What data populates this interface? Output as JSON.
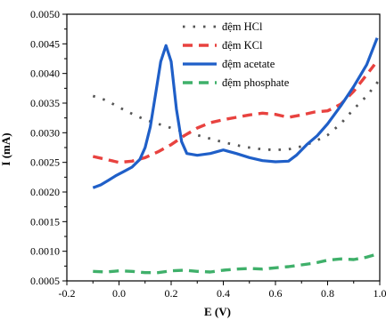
{
  "chart_data": {
    "type": "line",
    "xlabel": "E (V)",
    "ylabel": "I (mA)",
    "xlim": [
      -0.2,
      1.0
    ],
    "ylim": [
      0.0005,
      0.005
    ],
    "x_ticks": [
      "-0.2",
      "0.0",
      "0.2",
      "0.4",
      "0.6",
      "0.8",
      "1.0"
    ],
    "y_ticks": [
      "0.0005",
      "0.0010",
      "0.0015",
      "0.0020",
      "0.0025",
      "0.0030",
      "0.0035",
      "0.0040",
      "0.0045",
      "0.0050"
    ],
    "legend_position": "top-right",
    "grid": false,
    "series": [
      {
        "name": "đệm HCl",
        "color": "#555555",
        "style": "dotted",
        "x": [
          -0.1,
          -0.05,
          0.0,
          0.05,
          0.1,
          0.15,
          0.2,
          0.25,
          0.3,
          0.35,
          0.4,
          0.45,
          0.5,
          0.55,
          0.6,
          0.65,
          0.7,
          0.75,
          0.8,
          0.85,
          0.9,
          0.95,
          1.0
        ],
        "values": [
          0.00362,
          0.00355,
          0.00343,
          0.00332,
          0.00322,
          0.00315,
          0.00308,
          0.00302,
          0.00296,
          0.0029,
          0.00284,
          0.00279,
          0.00275,
          0.00272,
          0.00271,
          0.00272,
          0.00277,
          0.00285,
          0.00296,
          0.00315,
          0.0034,
          0.00362,
          0.0039
        ]
      },
      {
        "name": "đệm KCl",
        "color": "#e8423f",
        "style": "dashed",
        "x": [
          -0.1,
          -0.05,
          0.0,
          0.05,
          0.1,
          0.15,
          0.2,
          0.25,
          0.3,
          0.35,
          0.4,
          0.45,
          0.5,
          0.55,
          0.6,
          0.65,
          0.7,
          0.75,
          0.8,
          0.85,
          0.9,
          0.95,
          0.98
        ],
        "values": [
          0.0026,
          0.00255,
          0.0025,
          0.00252,
          0.00258,
          0.00268,
          0.0028,
          0.00295,
          0.00308,
          0.00317,
          0.00322,
          0.00326,
          0.0033,
          0.00333,
          0.00331,
          0.00326,
          0.0033,
          0.00335,
          0.00337,
          0.00348,
          0.0037,
          0.00398,
          0.00415
        ]
      },
      {
        "name": "đệm acetate",
        "color": "#1f5fc8",
        "style": "solid",
        "x": [
          -0.1,
          -0.07,
          -0.04,
          -0.01,
          0.02,
          0.05,
          0.08,
          0.1,
          0.12,
          0.14,
          0.16,
          0.18,
          0.2,
          0.22,
          0.24,
          0.26,
          0.3,
          0.35,
          0.4,
          0.45,
          0.5,
          0.55,
          0.6,
          0.65,
          0.68,
          0.72,
          0.76,
          0.8,
          0.85,
          0.9,
          0.95,
          0.99
        ],
        "values": [
          0.00207,
          0.00212,
          0.0022,
          0.00228,
          0.00235,
          0.00242,
          0.00255,
          0.00275,
          0.0031,
          0.00365,
          0.0042,
          0.00447,
          0.0042,
          0.0034,
          0.00285,
          0.00265,
          0.00262,
          0.00265,
          0.00271,
          0.00265,
          0.00258,
          0.00253,
          0.00251,
          0.00252,
          0.00262,
          0.0028,
          0.00295,
          0.00315,
          0.00345,
          0.00378,
          0.00415,
          0.0046
        ]
      },
      {
        "name": "đệm phosphate",
        "color": "#3fb06a",
        "style": "dashed",
        "x": [
          -0.1,
          -0.05,
          0.0,
          0.05,
          0.1,
          0.15,
          0.2,
          0.25,
          0.3,
          0.35,
          0.4,
          0.45,
          0.5,
          0.55,
          0.6,
          0.65,
          0.7,
          0.75,
          0.8,
          0.85,
          0.9,
          0.95,
          0.98
        ],
        "values": [
          0.00066,
          0.00065,
          0.00067,
          0.00066,
          0.00064,
          0.00064,
          0.00067,
          0.00068,
          0.00066,
          0.00065,
          0.00068,
          0.0007,
          0.00071,
          0.0007,
          0.00072,
          0.00074,
          0.00077,
          0.0008,
          0.00085,
          0.00087,
          0.00086,
          0.0009,
          0.00094
        ]
      }
    ]
  }
}
